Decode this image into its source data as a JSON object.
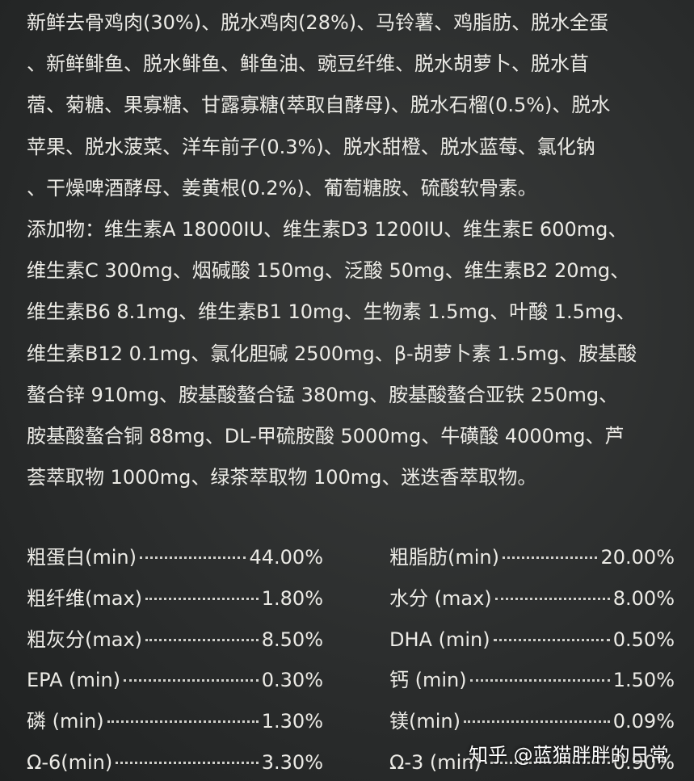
{
  "ingredients": {
    "lines": [
      "新鲜去骨鸡肉(30%)、脱水鸡肉(28%)、马铃薯、鸡脂肪、脱水全蛋",
      "、新鲜鲱鱼、脱水鲱鱼、鲱鱼油、豌豆纤维、脱水胡萝卜、脱水苜",
      "蓿、菊糖、果寡糖、甘露寡糖(萃取自酵母)、脱水石榴(0.5%)、脱水",
      "苹果、脱水菠菜、洋车前子(0.3%)、脱水甜橙、脱水蓝莓、氯化钠",
      "、干燥啤酒酵母、姜黄根(0.2%)、葡萄糖胺、硫酸软骨素。",
      "添加物：维生素A 18000IU、维生素D3 1200IU、维生素E 600mg、",
      "维生素C 300mg、烟碱酸 150mg、泛酸 50mg、维生素B2 20mg、",
      "维生素B6 8.1mg、维生素B1 10mg、生物素 1.5mg、叶酸 1.5mg、",
      "维生素B12 0.1mg、氯化胆碱 2500mg、β-胡萝卜素 1.5mg、胺基酸",
      "螯合锌 910mg、胺基酸螯合锰 380mg、胺基酸螯合亚铁 250mg、",
      "胺基酸螯合铜 88mg、DL-甲硫胺酸 5000mg、牛磺酸 4000mg、芦",
      "荟萃取物 1000mg、绿茶萃取物 100mg、迷迭香萃取物。"
    ]
  },
  "analysis": {
    "rows": [
      [
        {
          "label": "粗蛋白(min)",
          "value": "44.00%"
        },
        {
          "label": "粗脂肪(min)",
          "value": "20.00%"
        }
      ],
      [
        {
          "label": "粗纤维(max)",
          "value": "1.80%"
        },
        {
          "label": "水分 (max)",
          "value": "8.00%"
        }
      ],
      [
        {
          "label": "粗灰分(max)",
          "value": "8.50%"
        },
        {
          "label": "DHA (min)",
          "value": "0.50%"
        }
      ],
      [
        {
          "label": "EPA (min)",
          "value": "0.30%"
        },
        {
          "label": "钙 (min)",
          "value": "1.50%"
        }
      ],
      [
        {
          "label": "磷 (min)",
          "value": "1.30%"
        },
        {
          "label": "镁(min)",
          "value": "0.09%"
        }
      ],
      [
        {
          "label": "Ω-6(min)",
          "value": "3.30%"
        },
        {
          "label": "Ω-3 (min)",
          "value": "0.90%"
        }
      ]
    ]
  },
  "watermark": "知乎 @蓝猫胖胖的日常"
}
